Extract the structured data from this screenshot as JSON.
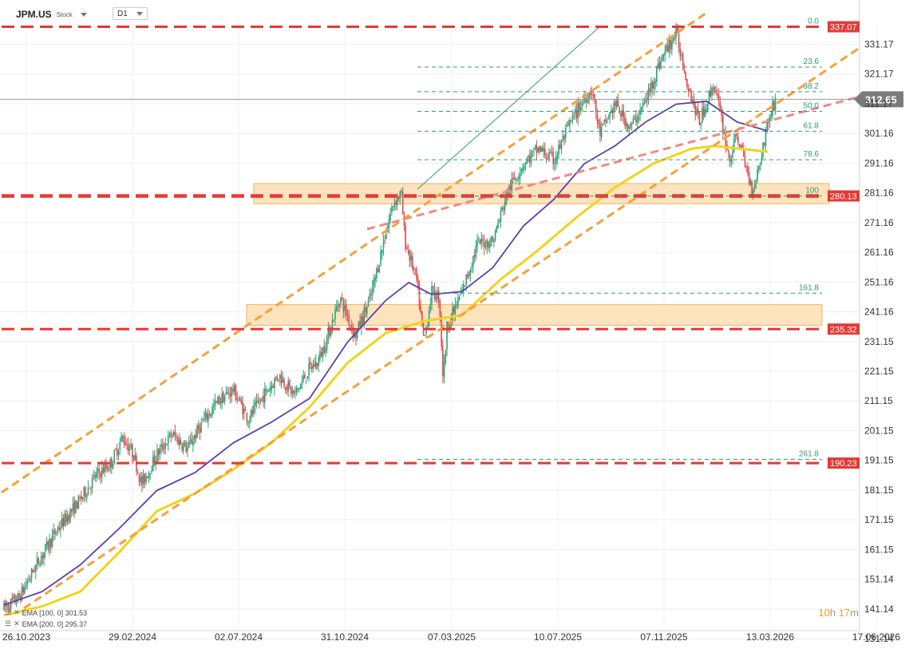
{
  "header": {
    "symbol": "JPM.US",
    "type": "Stock",
    "timeframe": "D1"
  },
  "legend": [
    {
      "label": "EMA [100, 0] 301.53",
      "color": "#5b3fa8"
    },
    {
      "label": "EMA [200, 0] 295.37",
      "color": "#f2d31b"
    }
  ],
  "countdown": {
    "hours": "10",
    "h": "h",
    "minutes": "17",
    "m": "m"
  },
  "chart_data": {
    "type": "candlestick",
    "x_labels": [
      "26.10.2023",
      "29.02.2024",
      "02.07.2024",
      "31.10.2024",
      "07.03.2025",
      "10.07.2025",
      "07.11.2025",
      "13.03.2026",
      "17.06.2026"
    ],
    "y_ticks": [
      331.17,
      321.17,
      311.17,
      301.16,
      291.16,
      281.16,
      271.16,
      261.16,
      251.16,
      241.16,
      231.15,
      221.15,
      211.15,
      201.15,
      191.15,
      181.15,
      171.15,
      161.15,
      151.14,
      141.14,
      131.14
    ],
    "ylim": [
      131.14,
      338
    ],
    "current_price": 312.65,
    "horizontal_levels": [
      337.07,
      280.13,
      235.32,
      190.23
    ],
    "fibonacci": [
      {
        "label": "0.0",
        "value": 337.07
      },
      {
        "label": "23.6",
        "value": 323.5
      },
      {
        "label": "38.2",
        "value": 315.2
      },
      {
        "label": "50.0",
        "value": 308.6
      },
      {
        "label": "61.8",
        "value": 301.9
      },
      {
        "label": "78.6",
        "value": 292.3
      },
      {
        "label": "100",
        "value": 280.1
      },
      {
        "label": "161.8",
        "value": 247.4
      },
      {
        "label": "261.8",
        "value": 191.5
      }
    ],
    "zones": [
      {
        "low": 277.5,
        "high": 284.3
      },
      {
        "low": 236.6,
        "high": 243.6
      }
    ],
    "price_path": [
      [
        0,
        141.5
      ],
      [
        0.02,
        145
      ],
      [
        0.04,
        155
      ],
      [
        0.07,
        168
      ],
      [
        0.1,
        178
      ],
      [
        0.12,
        186
      ],
      [
        0.14,
        190
      ],
      [
        0.155,
        199
      ],
      [
        0.17,
        193
      ],
      [
        0.18,
        183
      ],
      [
        0.2,
        193
      ],
      [
        0.22,
        200
      ],
      [
        0.24,
        195
      ],
      [
        0.26,
        204
      ],
      [
        0.28,
        211
      ],
      [
        0.3,
        215
      ],
      [
        0.32,
        205
      ],
      [
        0.34,
        213
      ],
      [
        0.36,
        220
      ],
      [
        0.38,
        213
      ],
      [
        0.4,
        222
      ],
      [
        0.41,
        224
      ],
      [
        0.42,
        230
      ],
      [
        0.44,
        246
      ],
      [
        0.46,
        233
      ],
      [
        0.48,
        246
      ],
      [
        0.5,
        268
      ],
      [
        0.51,
        278
      ],
      [
        0.52,
        281
      ],
      [
        0.525,
        265
      ],
      [
        0.54,
        252
      ],
      [
        0.55,
        231
      ],
      [
        0.56,
        248
      ],
      [
        0.57,
        246
      ],
      [
        0.575,
        218
      ],
      [
        0.58,
        236
      ],
      [
        0.6,
        248
      ],
      [
        0.62,
        264
      ],
      [
        0.64,
        265
      ],
      [
        0.66,
        282
      ],
      [
        0.68,
        291
      ],
      [
        0.7,
        296
      ],
      [
        0.72,
        292
      ],
      [
        0.74,
        304
      ],
      [
        0.76,
        313
      ],
      [
        0.77,
        316
      ],
      [
        0.78,
        301
      ],
      [
        0.8,
        311
      ],
      [
        0.82,
        303
      ],
      [
        0.84,
        312
      ],
      [
        0.86,
        326
      ],
      [
        0.88,
        335
      ],
      [
        0.895,
        318
      ],
      [
        0.91,
        305
      ],
      [
        0.93,
        318
      ],
      [
        0.95,
        292
      ],
      [
        0.96,
        301
      ],
      [
        0.97,
        291
      ],
      [
        0.98,
        282
      ],
      [
        0.99,
        292
      ],
      [
        1.0,
        305
      ],
      [
        1.01,
        312.65
      ]
    ],
    "ema100_path": [
      [
        0,
        142.5
      ],
      [
        0.05,
        147
      ],
      [
        0.1,
        156
      ],
      [
        0.15,
        168
      ],
      [
        0.2,
        181
      ],
      [
        0.25,
        187
      ],
      [
        0.3,
        197
      ],
      [
        0.35,
        204
      ],
      [
        0.4,
        212
      ],
      [
        0.45,
        231
      ],
      [
        0.5,
        245
      ],
      [
        0.53,
        251
      ],
      [
        0.56,
        247
      ],
      [
        0.6,
        248
      ],
      [
        0.64,
        256
      ],
      [
        0.68,
        270
      ],
      [
        0.72,
        279
      ],
      [
        0.76,
        291
      ],
      [
        0.8,
        297
      ],
      [
        0.84,
        305
      ],
      [
        0.88,
        311
      ],
      [
        0.92,
        312
      ],
      [
        0.96,
        305
      ],
      [
        1.0,
        302
      ]
    ],
    "ema200_path": [
      [
        0,
        139
      ],
      [
        0.05,
        142
      ],
      [
        0.1,
        147
      ],
      [
        0.15,
        160
      ],
      [
        0.2,
        174
      ],
      [
        0.25,
        180
      ],
      [
        0.3,
        188
      ],
      [
        0.35,
        197
      ],
      [
        0.4,
        209
      ],
      [
        0.45,
        224
      ],
      [
        0.5,
        234
      ],
      [
        0.55,
        238
      ],
      [
        0.6,
        240
      ],
      [
        0.65,
        252
      ],
      [
        0.7,
        262
      ],
      [
        0.75,
        273
      ],
      [
        0.8,
        283
      ],
      [
        0.85,
        291
      ],
      [
        0.9,
        296
      ],
      [
        0.93,
        297
      ],
      [
        1.0,
        295
      ]
    ],
    "title": "",
    "xlabel": "",
    "ylabel": "",
    "grid": true
  },
  "colors": {
    "level": "#e53935",
    "fib": "#2f9c77",
    "channel": "#f5a03a",
    "pink_trend": "#ef8a87",
    "ema100": "#5b3fa8",
    "ema200": "#f2d31b",
    "up": "#28a37c",
    "down": "#e14b4b",
    "zone_fill": "#fcd9a8",
    "zone_stroke": "#f2b366",
    "price_tag": "#7b7b7b"
  }
}
